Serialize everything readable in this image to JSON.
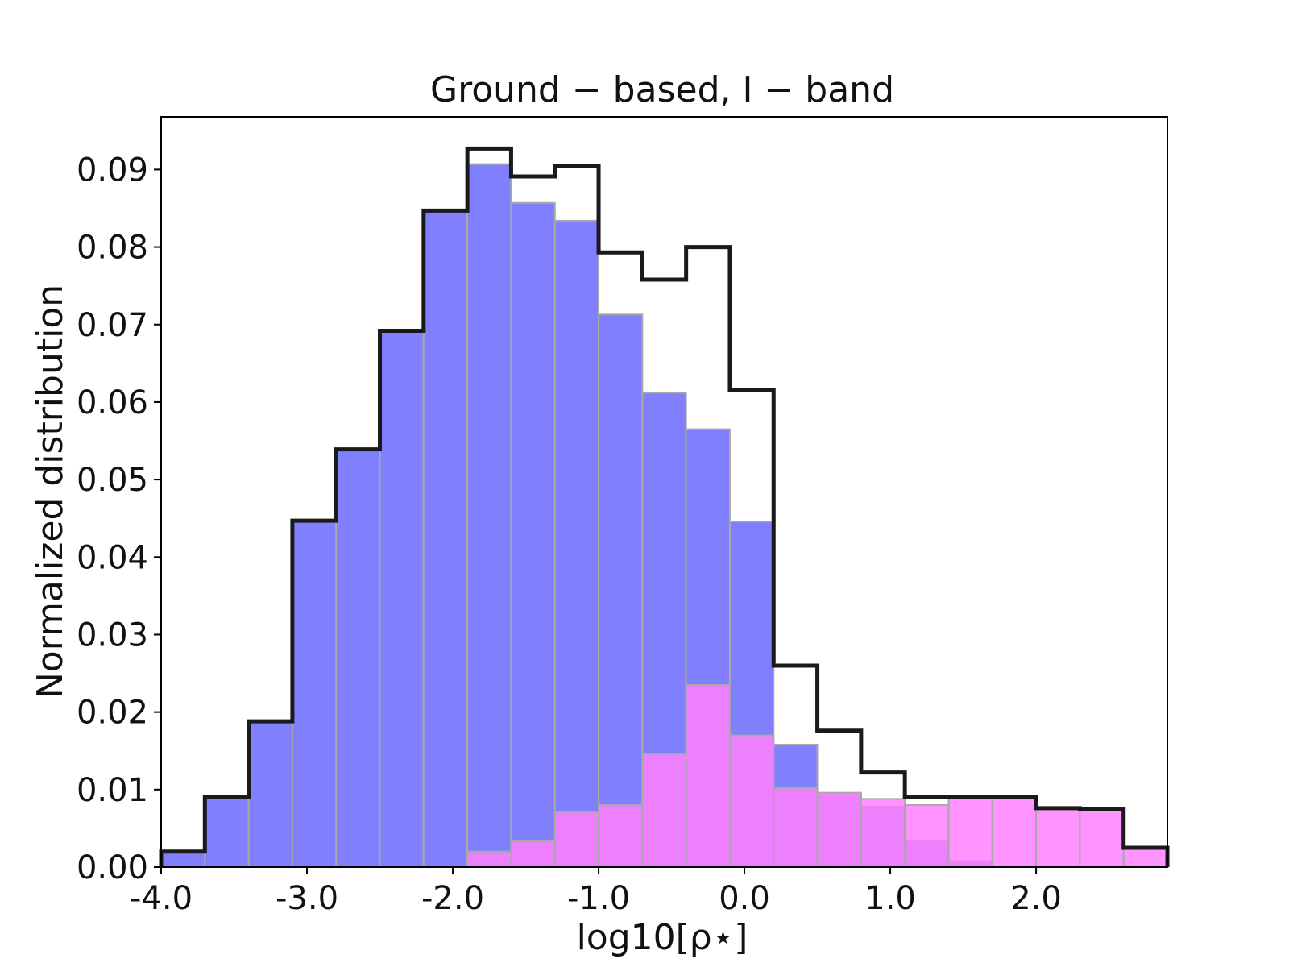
{
  "chart_data": {
    "type": "bar",
    "title": "Ground − based, I − band",
    "xlabel": "log10[ρ⋆]",
    "ylabel": "Normalized distribution",
    "xlim": [
      -4.0,
      2.9
    ],
    "ylim": [
      0.0,
      0.0968
    ],
    "bin_edges": [
      -4.0,
      -3.7,
      -3.4,
      -3.1,
      -2.8,
      -2.5,
      -2.2,
      -1.9,
      -1.6,
      -1.3,
      -1.0,
      -0.7,
      -0.4,
      -0.1,
      0.2,
      0.5,
      0.8,
      1.1,
      1.4,
      1.7,
      2.0,
      2.3,
      2.6,
      2.9
    ],
    "x_ticks": [
      -4.0,
      -3.0,
      -2.0,
      -1.0,
      0.0,
      1.0,
      2.0
    ],
    "x_tick_labels": [
      "-4.0",
      "-3.0",
      "-2.0",
      "-1.0",
      "0.0",
      "1.0",
      "2.0"
    ],
    "y_ticks": [
      0.0,
      0.01,
      0.02,
      0.03,
      0.04,
      0.05,
      0.06,
      0.07,
      0.08,
      0.09
    ],
    "y_tick_labels": [
      "0.00",
      "0.01",
      "0.02",
      "0.03",
      "0.04",
      "0.05",
      "0.06",
      "0.07",
      "0.08",
      "0.09"
    ],
    "grid": false,
    "series": [
      {
        "style": "filled",
        "color": "#8080ff",
        "values": [
          0.002,
          0.009,
          0.0188,
          0.0447,
          0.0539,
          0.0692,
          0.0847,
          0.0907,
          0.0857,
          0.0834,
          0.0713,
          0.0612,
          0.0565,
          0.0446,
          0.0158,
          0.0094,
          0.0078,
          0.0034,
          0.0008,
          0.0,
          0.0,
          0.0,
          0.0
        ]
      },
      {
        "style": "filled",
        "color": "#ff80ff",
        "values": [
          0.0,
          0.0,
          0.0,
          0.0,
          0.0,
          0.0,
          0.0,
          0.002,
          0.0034,
          0.0071,
          0.008,
          0.0146,
          0.0235,
          0.017,
          0.0102,
          0.0096,
          0.0088,
          0.008,
          0.009,
          0.009,
          0.0076,
          0.0075,
          0.0025
        ]
      },
      {
        "style": "step",
        "color": "#1a1a1a",
        "values": [
          0.002,
          0.009,
          0.0188,
          0.0447,
          0.0539,
          0.0692,
          0.0847,
          0.0927,
          0.0891,
          0.0905,
          0.0793,
          0.0758,
          0.08,
          0.0616,
          0.026,
          0.0176,
          0.0122,
          0.009,
          0.009,
          0.009,
          0.0076,
          0.0075,
          0.0025
        ]
      }
    ]
  }
}
